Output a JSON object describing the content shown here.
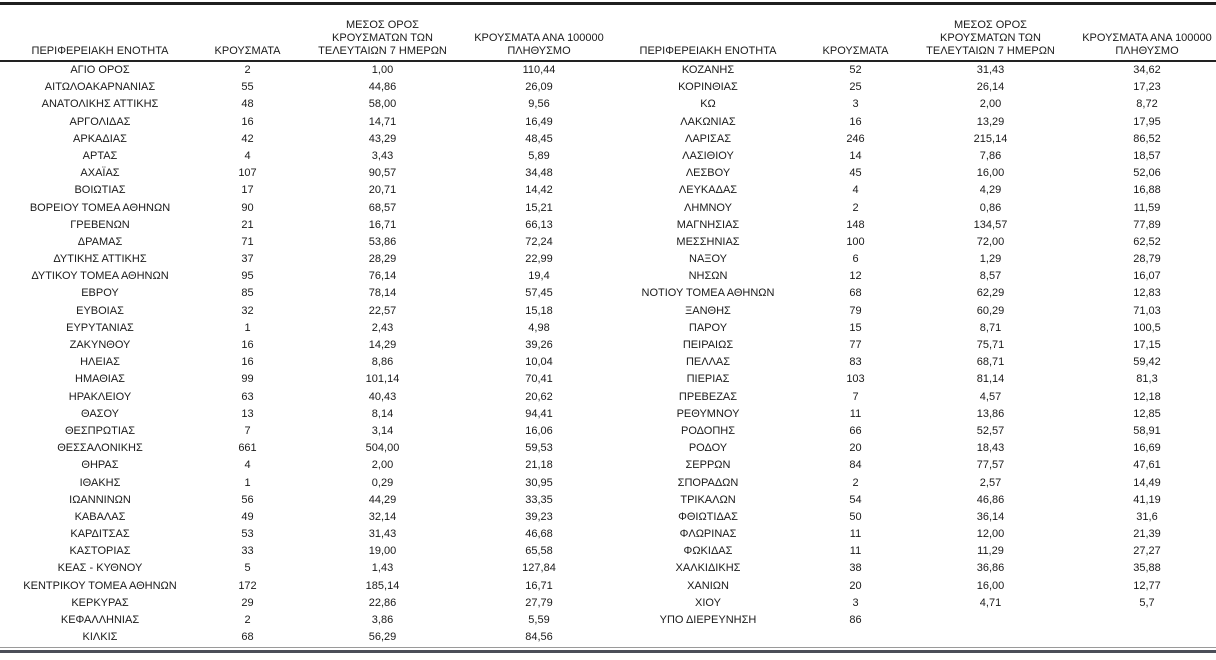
{
  "page": {
    "background_color": "#ffffff",
    "text_color": "#1a1a1a",
    "top_border_color": "#1f1f1f",
    "bottom_border_colors": [
      "#9a9a9a",
      "#4b4e58"
    ]
  },
  "header_display": {
    "region": "ΠΕΡΙΦΕΡΕΙΑΚΗ ΕΝΟΤΗΤΑ",
    "cases": "ΚΡΟΥΣΜΑΤΑ",
    "avg7": "ΜΕΣΟΣ ΟΡΟΣ\nΚΡΟΥΣΜΑΤΩΝ ΤΩΝ\nΤΕΛΕΥΤΑΙΩΝ 7 ΗΜΕΡΩΝ",
    "per100k": "ΚΡΟΥΣΜΑΤΑ ΑΝΑ 100000\nΠΛΗΘΥΣΜΟ"
  },
  "chart_data": {
    "type": "table",
    "columns": [
      "ΠΕΡΙΦΕΡΕΙΑΚΗ ΕΝΟΤΗΤΑ",
      "ΚΡΟΥΣΜΑΤΑ",
      "ΜΕΣΟΣ ΟΡΟΣ ΚΡΟΥΣΜΑΤΩΝ ΤΩΝ ΤΕΛΕΥΤΑΙΩΝ 7 ΗΜΕΡΩΝ",
      "ΚΡΟΥΣΜΑΤΑ ΑΝΑ 100000 ΠΛΗΘΥΣΜΟ"
    ],
    "left_rows": [
      [
        "ΑΓΙΟ ΟΡΟΣ",
        "2",
        "1,00",
        "110,44"
      ],
      [
        "ΑΙΤΩΛΟΑΚΑΡΝΑΝΙΑΣ",
        "55",
        "44,86",
        "26,09"
      ],
      [
        "ΑΝΑΤΟΛΙΚΗΣ ΑΤΤΙΚΗΣ",
        "48",
        "58,00",
        "9,56"
      ],
      [
        "ΑΡΓΟΛΙΔΑΣ",
        "16",
        "14,71",
        "16,49"
      ],
      [
        "ΑΡΚΑΔΙΑΣ",
        "42",
        "43,29",
        "48,45"
      ],
      [
        "ΑΡΤΑΣ",
        "4",
        "3,43",
        "5,89"
      ],
      [
        "ΑΧΑΪΑΣ",
        "107",
        "90,57",
        "34,48"
      ],
      [
        "ΒΟΙΩΤΙΑΣ",
        "17",
        "20,71",
        "14,42"
      ],
      [
        "ΒΟΡΕΙΟΥ ΤΟΜΕΑ ΑΘΗΝΩΝ",
        "90",
        "68,57",
        "15,21"
      ],
      [
        "ΓΡΕΒΕΝΩΝ",
        "21",
        "16,71",
        "66,13"
      ],
      [
        "ΔΡΑΜΑΣ",
        "71",
        "53,86",
        "72,24"
      ],
      [
        "ΔΥΤΙΚΗΣ ΑΤΤΙΚΗΣ",
        "37",
        "28,29",
        "22,99"
      ],
      [
        "ΔΥΤΙΚΟΥ ΤΟΜΕΑ ΑΘΗΝΩΝ",
        "95",
        "76,14",
        "19,4"
      ],
      [
        "ΕΒΡΟΥ",
        "85",
        "78,14",
        "57,45"
      ],
      [
        "ΕΥΒΟΙΑΣ",
        "32",
        "22,57",
        "15,18"
      ],
      [
        "ΕΥΡΥΤΑΝΙΑΣ",
        "1",
        "2,43",
        "4,98"
      ],
      [
        "ΖΑΚΥΝΘΟΥ",
        "16",
        "14,29",
        "39,26"
      ],
      [
        "ΗΛΕΙΑΣ",
        "16",
        "8,86",
        "10,04"
      ],
      [
        "ΗΜΑΘΙΑΣ",
        "99",
        "101,14",
        "70,41"
      ],
      [
        "ΗΡΑΚΛΕΙΟΥ",
        "63",
        "40,43",
        "20,62"
      ],
      [
        "ΘΑΣΟΥ",
        "13",
        "8,14",
        "94,41"
      ],
      [
        "ΘΕΣΠΡΩΤΙΑΣ",
        "7",
        "3,14",
        "16,06"
      ],
      [
        "ΘΕΣΣΑΛΟΝΙΚΗΣ",
        "661",
        "504,00",
        "59,53"
      ],
      [
        "ΘΗΡΑΣ",
        "4",
        "2,00",
        "21,18"
      ],
      [
        "ΙΘΑΚΗΣ",
        "1",
        "0,29",
        "30,95"
      ],
      [
        "ΙΩΑΝΝΙΝΩΝ",
        "56",
        "44,29",
        "33,35"
      ],
      [
        "ΚΑΒΑΛΑΣ",
        "49",
        "32,14",
        "39,23"
      ],
      [
        "ΚΑΡΔΙΤΣΑΣ",
        "53",
        "31,43",
        "46,68"
      ],
      [
        "ΚΑΣΤΟΡΙΑΣ",
        "33",
        "19,00",
        "65,58"
      ],
      [
        "ΚΕΑΣ - ΚΥΘΝΟΥ",
        "5",
        "1,43",
        "127,84"
      ],
      [
        "ΚΕΝΤΡΙΚΟΥ ΤΟΜΕΑ ΑΘΗΝΩΝ",
        "172",
        "185,14",
        "16,71"
      ],
      [
        "ΚΕΡΚΥΡΑΣ",
        "29",
        "22,86",
        "27,79"
      ],
      [
        "ΚΕΦΑΛΛΗΝΙΑΣ",
        "2",
        "3,86",
        "5,59"
      ],
      [
        "ΚΙΛΚΙΣ",
        "68",
        "56,29",
        "84,56"
      ]
    ],
    "right_rows": [
      [
        "ΚΟΖΑΝΗΣ",
        "52",
        "31,43",
        "34,62"
      ],
      [
        "ΚΟΡΙΝΘΙΑΣ",
        "25",
        "26,14",
        "17,23"
      ],
      [
        "ΚΩ",
        "3",
        "2,00",
        "8,72"
      ],
      [
        "ΛΑΚΩΝΙΑΣ",
        "16",
        "13,29",
        "17,95"
      ],
      [
        "ΛΑΡΙΣΑΣ",
        "246",
        "215,14",
        "86,52"
      ],
      [
        "ΛΑΣΙΘΙΟΥ",
        "14",
        "7,86",
        "18,57"
      ],
      [
        "ΛΕΣΒΟΥ",
        "45",
        "16,00",
        "52,06"
      ],
      [
        "ΛΕΥΚΑΔΑΣ",
        "4",
        "4,29",
        "16,88"
      ],
      [
        "ΛΗΜΝΟΥ",
        "2",
        "0,86",
        "11,59"
      ],
      [
        "ΜΑΓΝΗΣΙΑΣ",
        "148",
        "134,57",
        "77,89"
      ],
      [
        "ΜΕΣΣΗΝΙΑΣ",
        "100",
        "72,00",
        "62,52"
      ],
      [
        "ΝΑΞΟΥ",
        "6",
        "1,29",
        "28,79"
      ],
      [
        "ΝΗΣΩΝ",
        "12",
        "8,57",
        "16,07"
      ],
      [
        "ΝΟΤΙΟΥ ΤΟΜΕΑ ΑΘΗΝΩΝ",
        "68",
        "62,29",
        "12,83"
      ],
      [
        "ΞΑΝΘΗΣ",
        "79",
        "60,29",
        "71,03"
      ],
      [
        "ΠΑΡΟΥ",
        "15",
        "8,71",
        "100,5"
      ],
      [
        "ΠΕΙΡΑΙΩΣ",
        "77",
        "75,71",
        "17,15"
      ],
      [
        "ΠΕΛΛΑΣ",
        "83",
        "68,71",
        "59,42"
      ],
      [
        "ΠΙΕΡΙΑΣ",
        "103",
        "81,14",
        "81,3"
      ],
      [
        "ΠΡΕΒΕΖΑΣ",
        "7",
        "4,57",
        "12,18"
      ],
      [
        "ΡΕΘΥΜΝΟΥ",
        "11",
        "13,86",
        "12,85"
      ],
      [
        "ΡΟΔΟΠΗΣ",
        "66",
        "52,57",
        "58,91"
      ],
      [
        "ΡΟΔΟΥ",
        "20",
        "18,43",
        "16,69"
      ],
      [
        "ΣΕΡΡΩΝ",
        "84",
        "77,57",
        "47,61"
      ],
      [
        "ΣΠΟΡΑΔΩΝ",
        "2",
        "2,57",
        "14,49"
      ],
      [
        "ΤΡΙΚΑΛΩΝ",
        "54",
        "46,86",
        "41,19"
      ],
      [
        "ΦΘΙΩΤΙΔΑΣ",
        "50",
        "36,14",
        "31,6"
      ],
      [
        "ΦΛΩΡΙΝΑΣ",
        "11",
        "12,00",
        "21,39"
      ],
      [
        "ΦΩΚΙΔΑΣ",
        "11",
        "11,29",
        "27,27"
      ],
      [
        "ΧΑΛΚΙΔΙΚΗΣ",
        "38",
        "36,86",
        "35,88"
      ],
      [
        "ΧΑΝΙΩΝ",
        "20",
        "16,00",
        "12,77"
      ],
      [
        "ΧΙΟΥ",
        "3",
        "4,71",
        "5,7"
      ],
      [
        "ΥΠΟ ΔΙΕΡΕΥΝΗΣΗ",
        "86",
        "",
        ""
      ]
    ]
  }
}
